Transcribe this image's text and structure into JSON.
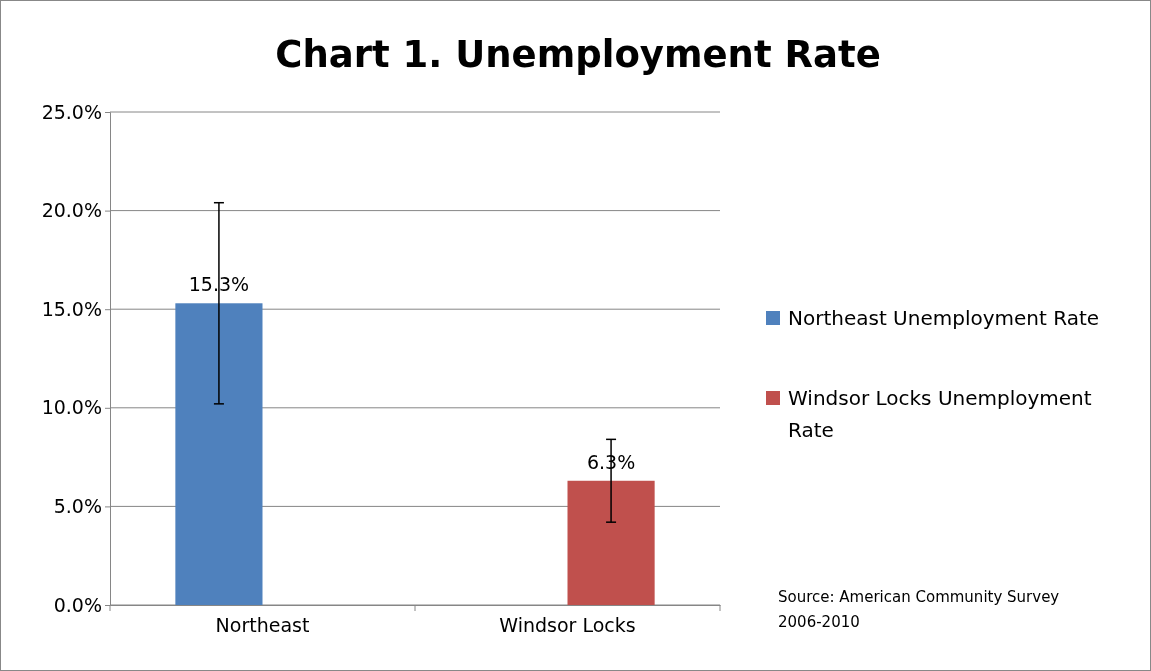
{
  "chart_data": {
    "type": "bar",
    "title": "Chart 1. Unemployment Rate",
    "categories": [
      "Northeast",
      "Windsor Locks"
    ],
    "series": [
      {
        "name": "Northeast Unemployment Rate",
        "color": "#4f81bd",
        "values": [
          15.3,
          null
        ],
        "errors": [
          5.1,
          null
        ],
        "value_labels": [
          "15.3%",
          null
        ]
      },
      {
        "name": "Windsor Locks Unemployment Rate",
        "color": "#c0504d",
        "values": [
          null,
          6.3
        ],
        "errors": [
          null,
          2.1
        ],
        "value_labels": [
          null,
          "6.3%"
        ]
      }
    ],
    "ylim": [
      0,
      25
    ],
    "yticks": [
      {
        "value": 0,
        "label": "0.0%"
      },
      {
        "value": 5,
        "label": "5.0%"
      },
      {
        "value": 10,
        "label": "10.0%"
      },
      {
        "value": 15,
        "label": "15.0%"
      },
      {
        "value": 20,
        "label": "20.0%"
      },
      {
        "value": 25,
        "label": "25.0%"
      }
    ],
    "grid": "y",
    "legend": "right",
    "annotations": [
      "Source: American Community Survey 2006-2010"
    ]
  }
}
